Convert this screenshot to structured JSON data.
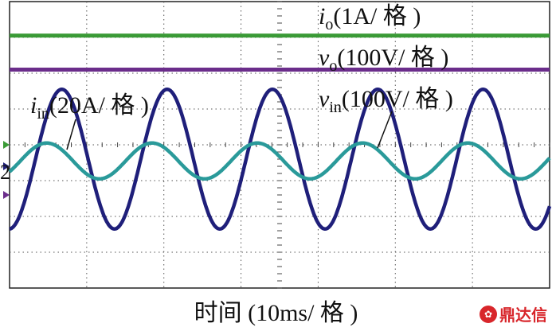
{
  "chart_data": {
    "type": "line",
    "xlabel": "时间 (10ms/ 格 )",
    "xlim": [
      0,
      100
    ],
    "ylim": [
      -4,
      4
    ],
    "grid": true,
    "ytick_label": "2",
    "series": [
      {
        "name": "iₒ(1A/ 格 )",
        "label_main": "i",
        "label_sub": "o",
        "label_rest": "(1A/ 格 )",
        "color": "#3a9a36",
        "kind": "dc",
        "level": 3.05
      },
      {
        "name": "vₒ(100V/ 格 )",
        "label_main": "v",
        "label_sub": "o",
        "label_rest": "(100V/ 格 )",
        "color": "#6b2d8b",
        "kind": "dc",
        "level": 2.1
      },
      {
        "name": "vᵢₙ(100V/ 格 )",
        "label_main": "v",
        "label_sub": "in",
        "label_rest": "(100V/ 格 )",
        "color": "#1f1f7a",
        "kind": "sine",
        "amplitude": 1.95,
        "offset": -0.4,
        "period_ms": 19.5,
        "phase_ms": 4.8
      },
      {
        "name": "iᵢₙ(20A/ 格 )",
        "label_main": "i",
        "label_sub": "in",
        "label_rest": "(20A/ 格 )",
        "color": "#2a9a9a",
        "kind": "sine",
        "amplitude": 0.5,
        "offset": -0.45,
        "period_ms": 19.5,
        "phase_ms": 2.0
      }
    ]
  },
  "ground_markers": [
    {
      "color": "#3a9a36",
      "level": 0.0
    },
    {
      "color": "#1f1f7a",
      "level": -0.6
    },
    {
      "color": "#6b2d8b",
      "level": -1.4
    }
  ],
  "watermark": {
    "text": "鼎达信",
    "color": "#d8262b"
  }
}
